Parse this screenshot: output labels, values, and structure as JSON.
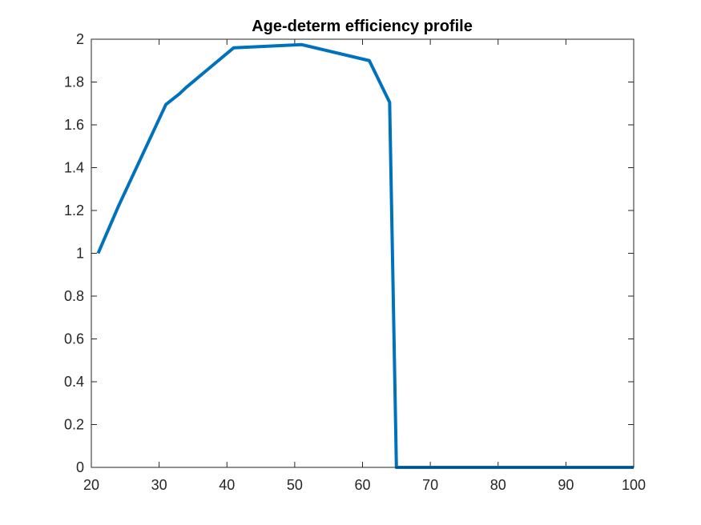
{
  "chart_data": {
    "type": "line",
    "title": "Age-determ efficiency profile",
    "xlabel": "",
    "ylabel": "",
    "xlim": [
      20,
      100
    ],
    "ylim": [
      0,
      2
    ],
    "xticks": [
      20,
      30,
      40,
      50,
      60,
      70,
      80,
      90,
      100
    ],
    "yticks": [
      0,
      0.2,
      0.4,
      0.6,
      0.8,
      1,
      1.2,
      1.4,
      1.6,
      1.8,
      2
    ],
    "xtick_labels": [
      "20",
      "30",
      "40",
      "50",
      "60",
      "70",
      "80",
      "90",
      "100"
    ],
    "ytick_labels": [
      "0",
      "0.2",
      "0.4",
      "0.6",
      "0.8",
      "1",
      "1.2",
      "1.4",
      "1.6",
      "1.8",
      "2"
    ],
    "grid": false,
    "series": [
      {
        "color": "#0072BD",
        "x": [
          21,
          24,
          31,
          33,
          34,
          41,
          51,
          61,
          64,
          65,
          100
        ],
        "y": [
          1.0,
          1.22,
          1.695,
          1.745,
          1.775,
          1.96,
          1.975,
          1.9,
          1.705,
          0.0,
          0.0
        ]
      }
    ]
  }
}
